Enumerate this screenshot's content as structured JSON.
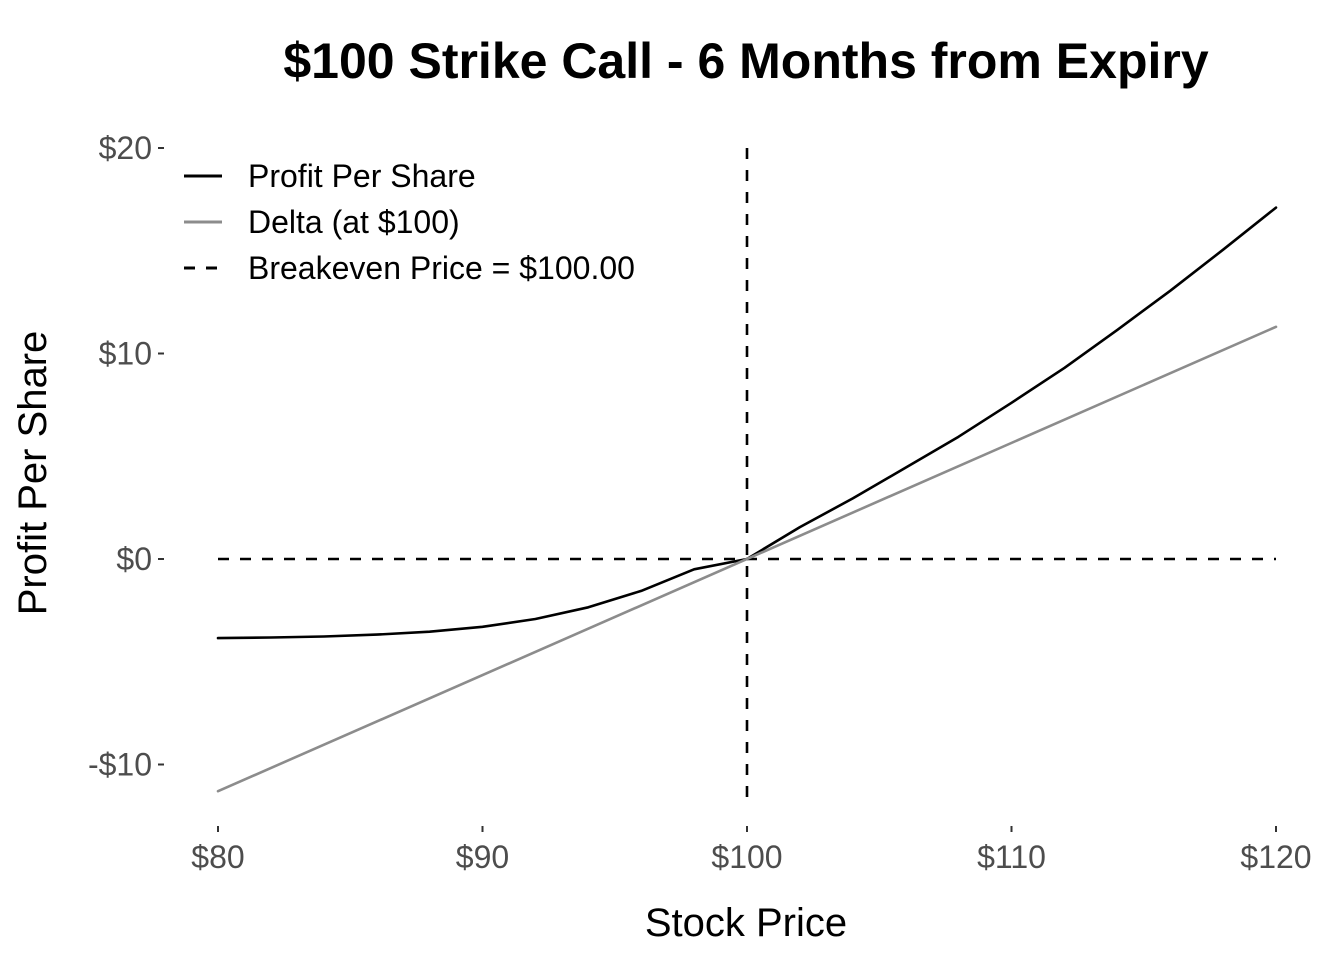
{
  "chart_data": {
    "type": "line",
    "title": "$100 Strike Call - 6 Months from Expiry",
    "xlabel": "Stock Price",
    "ylabel": "Profit Per Share",
    "xlim": [
      80,
      120
    ],
    "ylim": [
      -12.3,
      20.3
    ],
    "x_ticks": [
      {
        "value": 80,
        "label": "$80"
      },
      {
        "value": 90,
        "label": "$90"
      },
      {
        "value": 100,
        "label": "$100"
      },
      {
        "value": 110,
        "label": "$110"
      },
      {
        "value": 120,
        "label": "$120"
      }
    ],
    "y_ticks": [
      {
        "value": 20,
        "label": "$20"
      },
      {
        "value": 10,
        "label": "$10"
      },
      {
        "value": 0,
        "label": "$0"
      },
      {
        "value": -10,
        "label": "-$10"
      }
    ],
    "grid": false,
    "legend_position": "top-left",
    "series": [
      {
        "name": "Profit Per Share",
        "color": "#000000",
        "style": "solid",
        "x": [
          80,
          82,
          84,
          86,
          88,
          90,
          92,
          94,
          96,
          98,
          100,
          102,
          104,
          106,
          108,
          110,
          112,
          114,
          116,
          118,
          120
        ],
        "y": [
          -3.85,
          -3.82,
          -3.77,
          -3.68,
          -3.54,
          -3.3,
          -2.92,
          -2.35,
          -1.55,
          -0.5,
          0.0,
          1.55,
          2.95,
          4.45,
          5.95,
          7.6,
          9.3,
          11.15,
          13.05,
          15.05,
          17.1
        ]
      },
      {
        "name": "Delta (at $100)",
        "color": "#8c8c8c",
        "style": "solid",
        "x": [
          80,
          120
        ],
        "y": [
          -11.3,
          11.3
        ]
      }
    ],
    "reference_lines": [
      {
        "name": "Breakeven Price = $100.00",
        "orientation": "vertical",
        "value": 100,
        "color": "#000000",
        "style": "dashed"
      },
      {
        "name": "",
        "orientation": "horizontal",
        "value": 0,
        "color": "#000000",
        "style": "dashed"
      }
    ],
    "legend": [
      {
        "label": "Profit Per Share",
        "color": "#000000",
        "style": "solid"
      },
      {
        "label": "Delta (at $100)",
        "color": "#8c8c8c",
        "style": "solid"
      },
      {
        "label": "Breakeven Price = $100.00",
        "color": "#000000",
        "style": "dashed"
      }
    ]
  }
}
